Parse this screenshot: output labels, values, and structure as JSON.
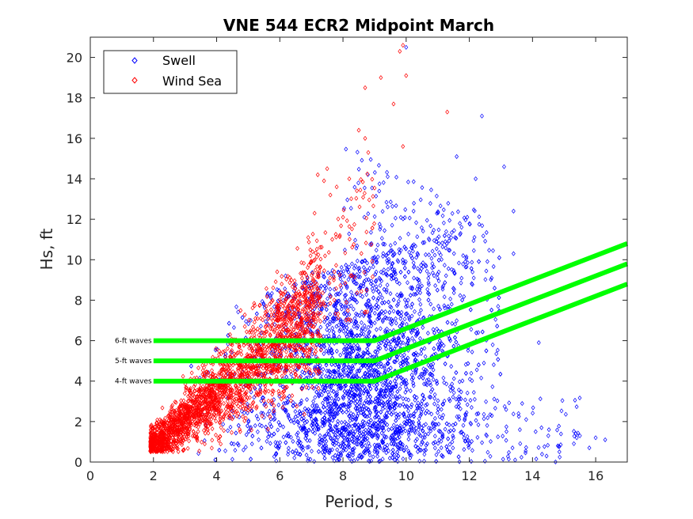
{
  "chart_data": {
    "type": "scatter",
    "title": "VNE 544 ECR2 Midpoint March",
    "xlabel": "Period, s",
    "ylabel": "Hs, ft",
    "xlim": [
      0,
      17
    ],
    "ylim": [
      0,
      21
    ],
    "xticks": [
      0,
      2,
      4,
      6,
      8,
      10,
      12,
      14,
      16
    ],
    "yticks": [
      0,
      2,
      4,
      6,
      8,
      10,
      12,
      14,
      16,
      18,
      20
    ],
    "legend_position": "top-left",
    "series": [
      {
        "name": "Swell",
        "color": "#0000ff",
        "marker": "diamond",
        "note": "dense cloud approx. period 2-13 s, Hs 0-11 ft; sparse outliers",
        "outliers": [
          {
            "x": 10.0,
            "y": 20.5
          },
          {
            "x": 12.4,
            "y": 17.1
          },
          {
            "x": 13.1,
            "y": 14.6
          },
          {
            "x": 13.4,
            "y": 12.4
          },
          {
            "x": 13.4,
            "y": 10.3
          },
          {
            "x": 14.2,
            "y": 5.9
          },
          {
            "x": 14.5,
            "y": 1.3
          },
          {
            "x": 15.4,
            "y": 1.2
          },
          {
            "x": 15.5,
            "y": 1.3
          },
          {
            "x": 16.0,
            "y": 1.2
          },
          {
            "x": 16.3,
            "y": 1.1
          },
          {
            "x": 14.8,
            "y": 0.8
          },
          {
            "x": 15.8,
            "y": 0.7
          },
          {
            "x": 13.6,
            "y": 1.6
          },
          {
            "x": 14.1,
            "y": 1.5
          },
          {
            "x": 13.8,
            "y": 2.1
          },
          {
            "x": 12.2,
            "y": 14.0
          },
          {
            "x": 11.6,
            "y": 15.1
          }
        ]
      },
      {
        "name": "Wind Sea",
        "color": "#ff0000",
        "marker": "diamond",
        "note": "dense band rising from (2, 1) to about (7, 9) ft; sparse points up to 20 ft",
        "outliers": [
          {
            "x": 9.9,
            "y": 20.6
          },
          {
            "x": 9.8,
            "y": 20.3
          },
          {
            "x": 9.2,
            "y": 19.0
          },
          {
            "x": 10.0,
            "y": 19.1
          },
          {
            "x": 8.7,
            "y": 18.5
          },
          {
            "x": 11.3,
            "y": 17.3
          },
          {
            "x": 9.6,
            "y": 17.7
          },
          {
            "x": 8.5,
            "y": 16.4
          },
          {
            "x": 8.7,
            "y": 16.0
          },
          {
            "x": 8.8,
            "y": 15.3
          },
          {
            "x": 7.8,
            "y": 13.6
          },
          {
            "x": 7.4,
            "y": 13.9
          },
          {
            "x": 7.6,
            "y": 13.2
          },
          {
            "x": 7.2,
            "y": 14.2
          },
          {
            "x": 7.1,
            "y": 12.3
          },
          {
            "x": 7.9,
            "y": 11.2
          },
          {
            "x": 8.0,
            "y": 12.1
          },
          {
            "x": 6.9,
            "y": 11.1
          },
          {
            "x": 8.2,
            "y": 14.0
          },
          {
            "x": 9.9,
            "y": 15.6
          },
          {
            "x": 7.5,
            "y": 14.5
          }
        ]
      }
    ],
    "threshold_lines": [
      {
        "label": "6-ft waves",
        "color": "#00ff00",
        "points": [
          [
            2,
            6
          ],
          [
            9,
            6
          ],
          [
            17,
            10.8
          ]
        ]
      },
      {
        "label": "5-ft waves",
        "color": "#00ff00",
        "points": [
          [
            2,
            5
          ],
          [
            9,
            5
          ],
          [
            17,
            9.8
          ]
        ]
      },
      {
        "label": "4-ft waves",
        "color": "#00ff00",
        "points": [
          [
            2,
            4
          ],
          [
            9,
            4
          ],
          [
            17,
            8.8
          ]
        ]
      }
    ]
  }
}
